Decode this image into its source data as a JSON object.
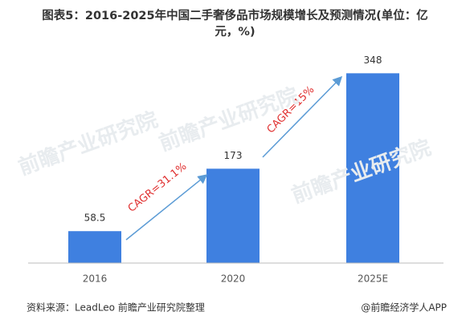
{
  "chart_data": {
    "type": "bar",
    "title": "图表5：2016-2025年中国二手奢侈品市场规模增长及预测情况(单位：亿元，%)",
    "categories": [
      "2016",
      "2020",
      "2025E"
    ],
    "values": [
      58.5,
      173,
      348
    ],
    "color": "#3f80e0",
    "ylim": [
      0,
      400
    ],
    "annotations": [
      "CAGR=31.1%",
      "CAGR=15%"
    ],
    "watermark": "前瞻产业研究院",
    "source": "资料来源：LeadLeo 前瞻产业研究院整理",
    "credit": "@前瞻经济学人APP"
  }
}
